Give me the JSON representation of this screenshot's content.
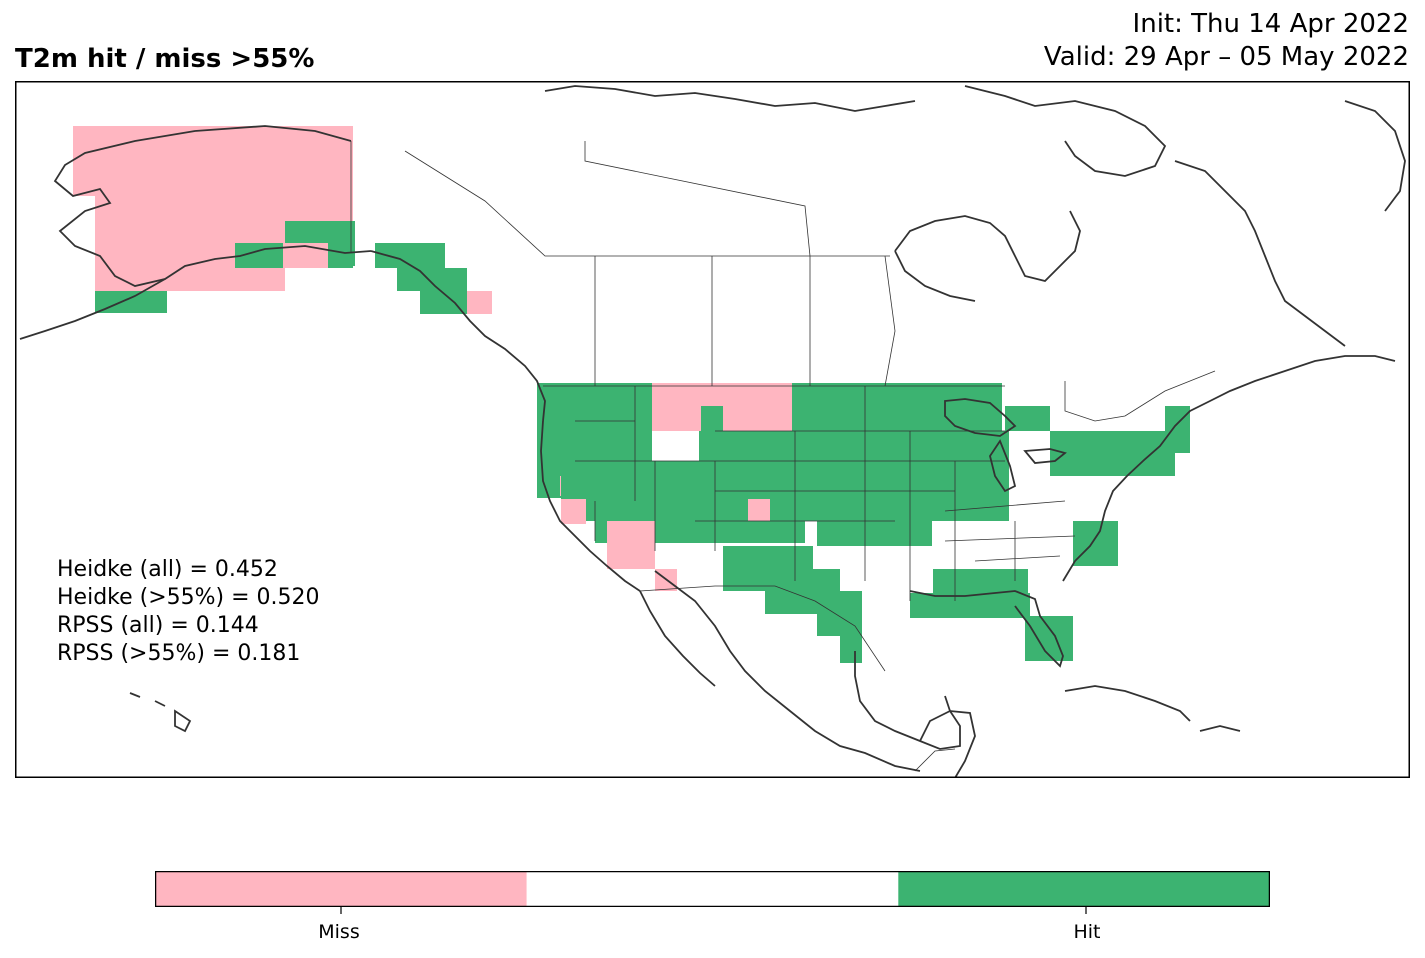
{
  "title": "T2m hit / miss  >55%",
  "init": "Init: Thu 14 Apr 2022",
  "valid": "Valid: 29 Apr – 05 May 2022",
  "scores": [
    "Heidke (all) = 0.452",
    "Heidke (>55%) = 0.520",
    "RPSS (all) = 0.144",
    "RPSS (>55%) = 0.181"
  ],
  "legend": {
    "categories": [
      "Miss",
      "",
      "Hit"
    ],
    "tick_labels": [
      "Miss",
      "Hit"
    ]
  },
  "colors": {
    "miss": "#ffb6c1",
    "hit": "#3cb371",
    "neutral": "#ffffff",
    "coastline": "#333333"
  }
}
